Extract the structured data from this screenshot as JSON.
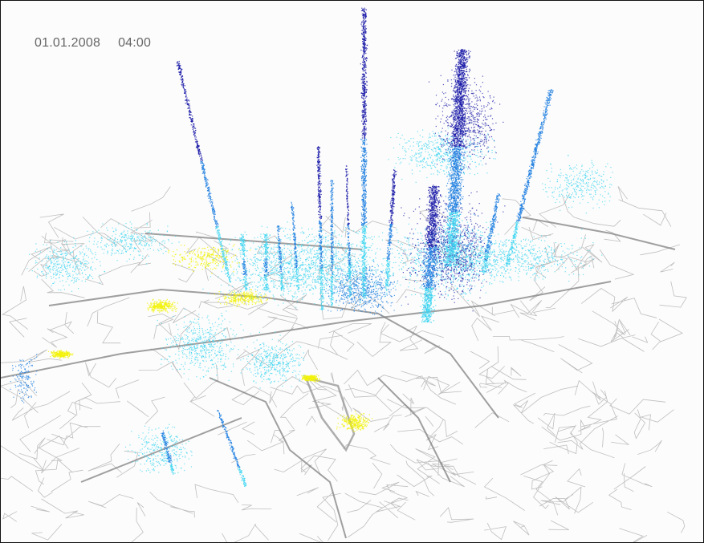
{
  "view": {
    "date": "01.01.2008",
    "time": "04:00"
  },
  "colors": {
    "background": "#fcfcfc",
    "roads": "#8c8c8c",
    "highlight_area": "#f2f20a",
    "density_low": "#3fd6f2",
    "density_mid": "#1e7fe0",
    "density_high": "#1a1aa8",
    "text": "#666666"
  }
}
